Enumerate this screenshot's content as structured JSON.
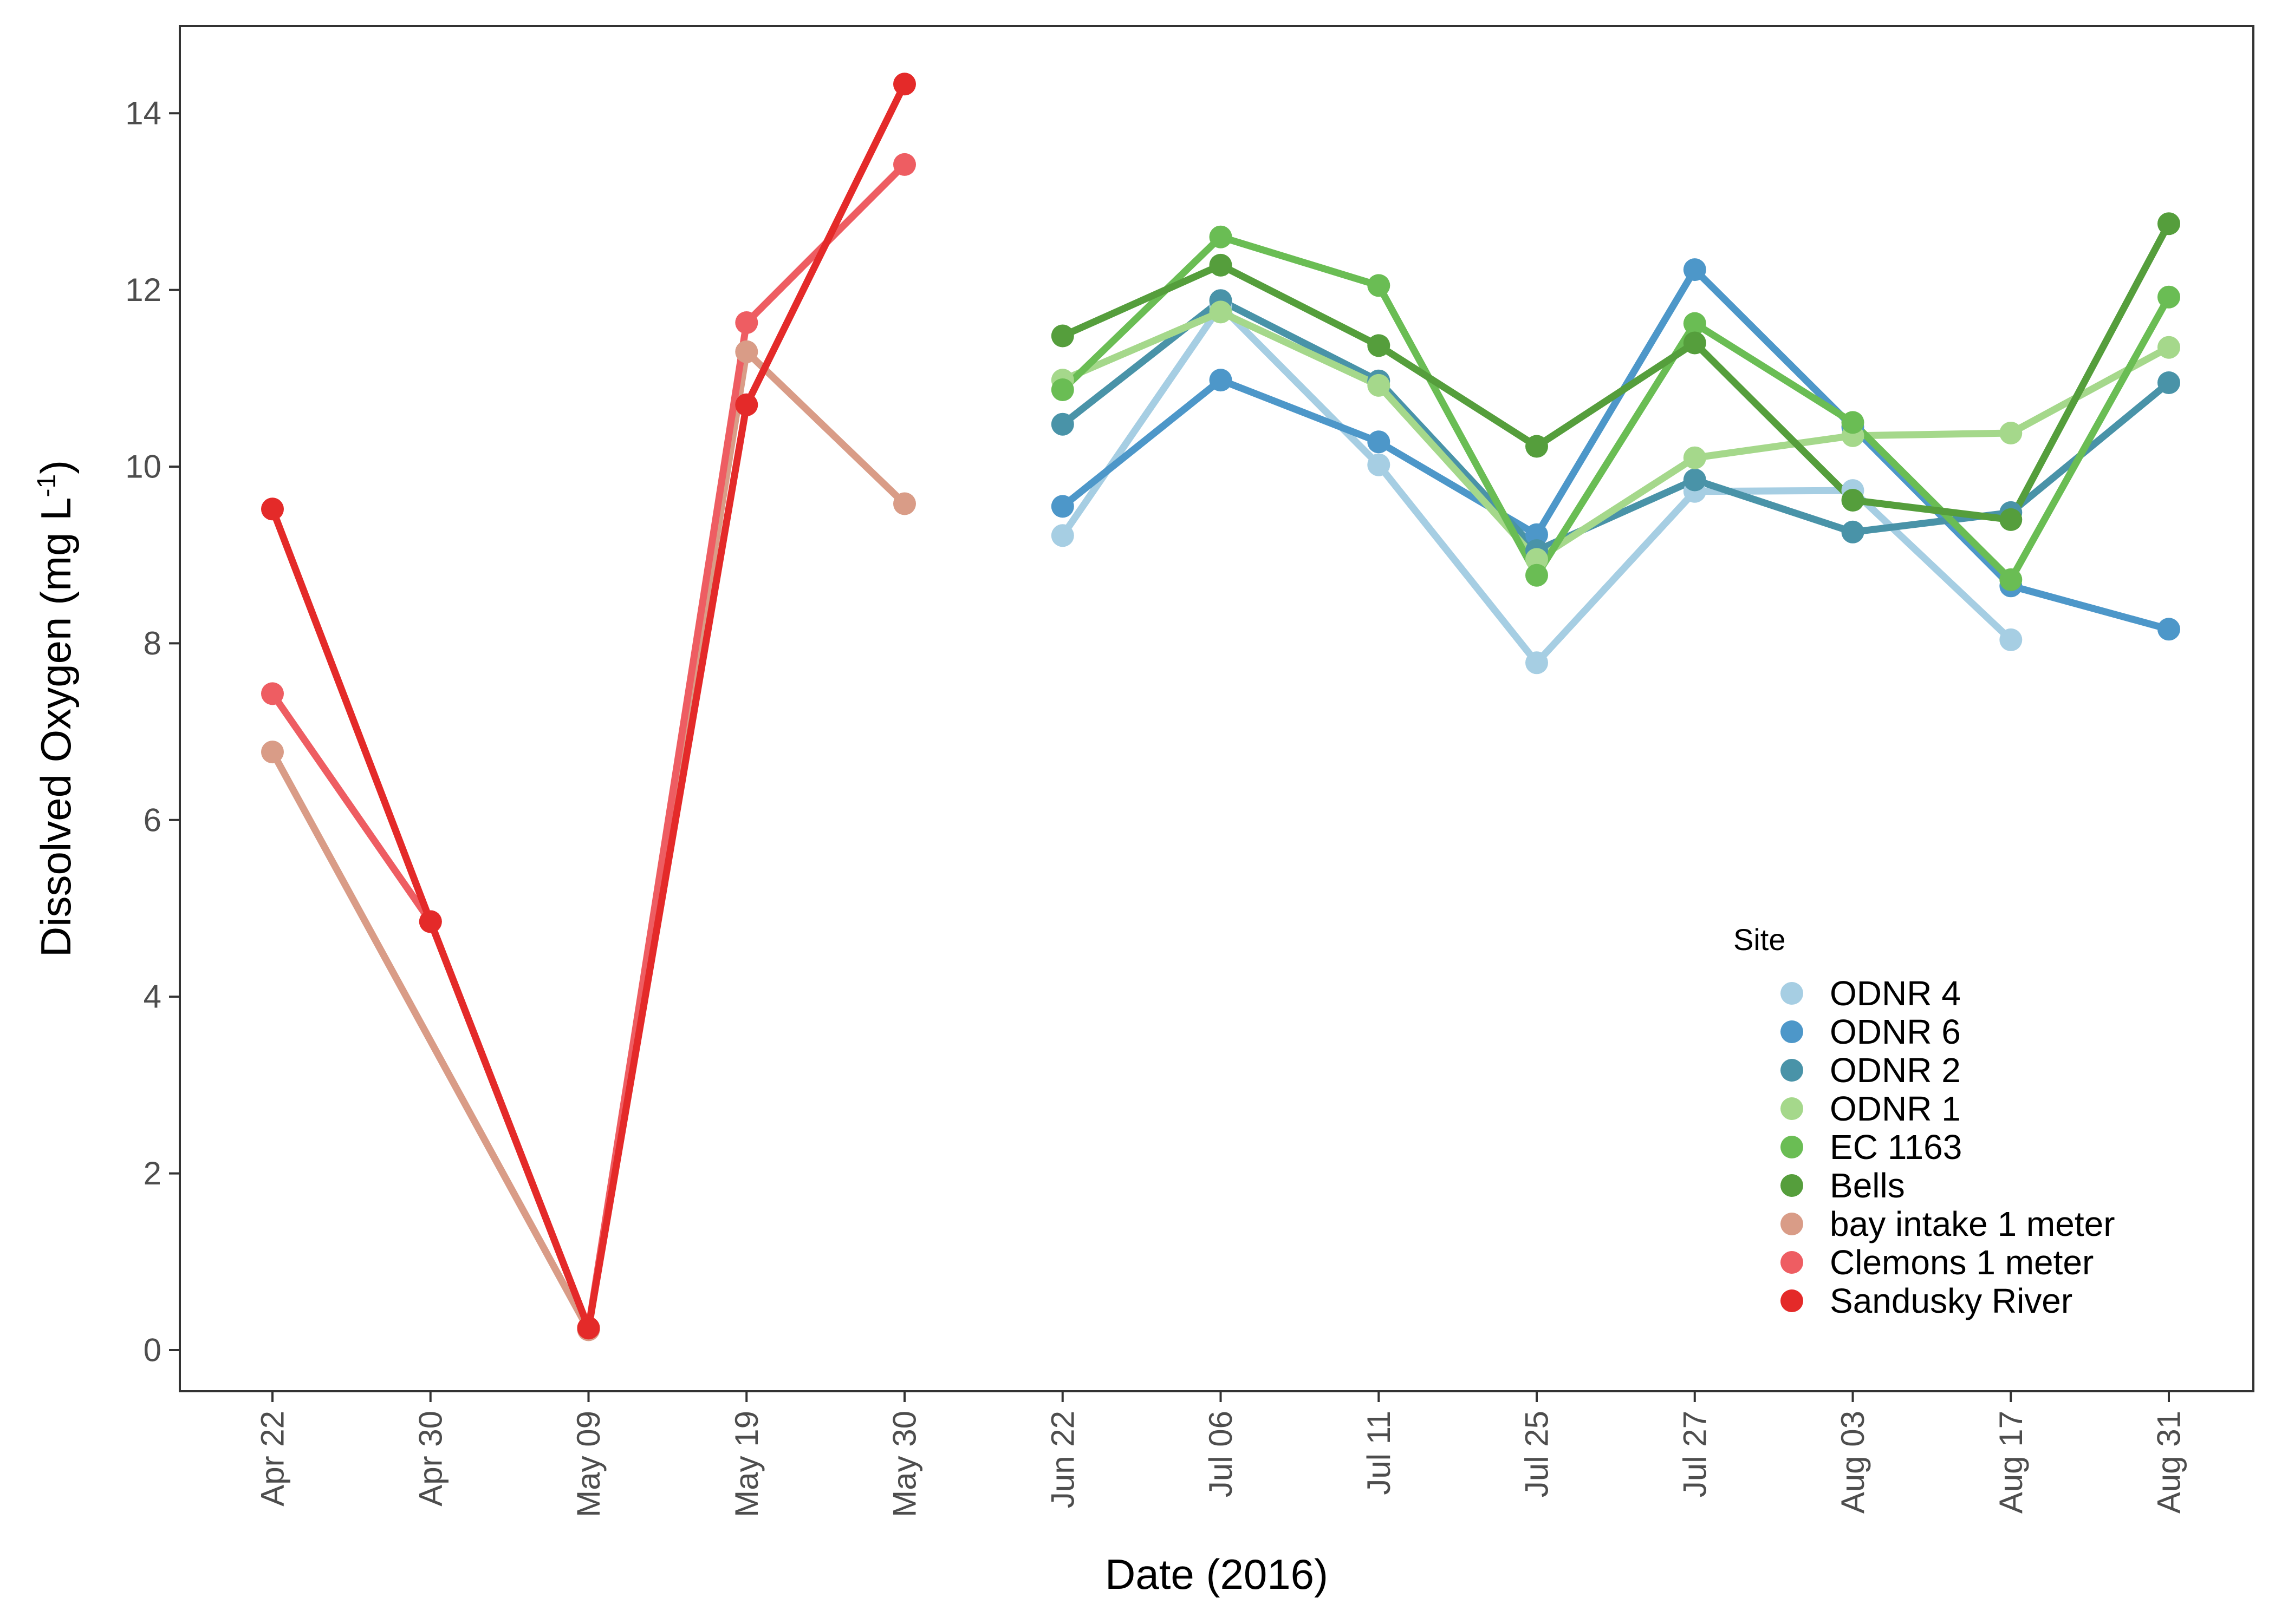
{
  "chart_data": {
    "type": "line",
    "xlabel": "Date (2016)",
    "ylabel": {
      "main": "Dissolved Oxygen (mg L",
      "superscript": "-1",
      "close": ")"
    },
    "categories": [
      "Apr 22",
      "Apr 30",
      "May 09",
      "May 19",
      "May 30",
      "Jun 22",
      "Jul 06",
      "Jul 11",
      "Jul 25",
      "Jul 27",
      "Aug 03",
      "Aug 17",
      "Aug 31"
    ],
    "ylim": [
      -0.45,
      15.0
    ],
    "yticks": [
      "0",
      "2",
      "4",
      "6",
      "8",
      "10",
      "12",
      "14"
    ],
    "grid": false,
    "legend": {
      "title": "Site",
      "position": "bottom-right-inside"
    },
    "series": [
      {
        "name": "ODNR 4",
        "color": "#a6cee3",
        "points": [
          [
            "Jun 22",
            9.22
          ],
          [
            "Jul 06",
            11.82
          ],
          [
            "Jul 11",
            10.02
          ],
          [
            "Jul 25",
            7.78
          ],
          [
            "Jul 27",
            9.72
          ],
          [
            "Aug 03",
            9.73
          ],
          [
            "Aug 17",
            8.04
          ]
        ]
      },
      {
        "name": "ODNR 6",
        "color": "#4d97c9",
        "points": [
          [
            "Jun 22",
            9.55
          ],
          [
            "Jul 06",
            10.98
          ],
          [
            "Jul 11",
            10.28
          ],
          [
            "Jul 25",
            9.23
          ],
          [
            "Jul 27",
            12.23
          ],
          [
            "Aug 03",
            10.45
          ],
          [
            "Aug 17",
            8.65
          ],
          [
            "Aug 31",
            8.16
          ]
        ]
      },
      {
        "name": "ODNR 2",
        "color": "#4993a8",
        "points": [
          [
            "Jun 22",
            10.48
          ],
          [
            "Jul 06",
            11.88
          ],
          [
            "Jul 11",
            10.97
          ],
          [
            "Jul 25",
            9.05
          ],
          [
            "Jul 27",
            9.85
          ],
          [
            "Aug 03",
            9.26
          ],
          [
            "Aug 17",
            9.48
          ],
          [
            "Aug 31",
            10.95
          ]
        ]
      },
      {
        "name": "ODNR 1",
        "color": "#a5d88b",
        "points": [
          [
            "Jun 22",
            10.98
          ],
          [
            "Jul 06",
            11.75
          ],
          [
            "Jul 11",
            10.92
          ],
          [
            "Jul 25",
            8.95
          ],
          [
            "Jul 27",
            10.1
          ],
          [
            "Aug 03",
            10.35
          ],
          [
            "Aug 17",
            10.38
          ],
          [
            "Aug 31",
            11.35
          ]
        ]
      },
      {
        "name": "EC 1163",
        "color": "#6abd54",
        "points": [
          [
            "Jun 22",
            10.87
          ],
          [
            "Jul 06",
            12.6
          ],
          [
            "Jul 11",
            12.05
          ],
          [
            "Jul 25",
            8.77
          ],
          [
            "Jul 27",
            11.62
          ],
          [
            "Aug 03",
            10.5
          ],
          [
            "Aug 17",
            8.72
          ],
          [
            "Aug 31",
            11.92
          ]
        ]
      },
      {
        "name": "Bells",
        "color": "#559e3c",
        "points": [
          [
            "Jun 22",
            11.48
          ],
          [
            "Jul 06",
            12.28
          ],
          [
            "Jul 11",
            11.37
          ],
          [
            "Jul 25",
            10.23
          ],
          [
            "Jul 27",
            11.4
          ],
          [
            "Aug 03",
            9.62
          ],
          [
            "Aug 17",
            9.4
          ],
          [
            "Aug 31",
            12.75
          ]
        ]
      },
      {
        "name": "bay intake 1 meter",
        "color": "#d99c87",
        "points": [
          [
            "Apr 22",
            6.77
          ],
          [
            "May 09",
            0.23
          ],
          [
            "May 19",
            11.3
          ],
          [
            "May 30",
            9.58
          ]
        ]
      },
      {
        "name": "Clemons 1 meter",
        "color": "#ee5d62",
        "points": [
          [
            "Apr 22",
            7.43
          ],
          [
            "Apr 30",
            4.85
          ],
          [
            "May 09",
            0.25
          ],
          [
            "May 19",
            11.63
          ],
          [
            "May 30",
            13.42
          ]
        ]
      },
      {
        "name": "Sandusky River",
        "color": "#e42a29",
        "points": [
          [
            "Apr 22",
            9.52
          ],
          [
            "Apr 30",
            4.85
          ],
          [
            "May 09",
            0.25
          ],
          [
            "May 19",
            10.7
          ],
          [
            "May 30",
            14.33
          ]
        ]
      }
    ]
  }
}
